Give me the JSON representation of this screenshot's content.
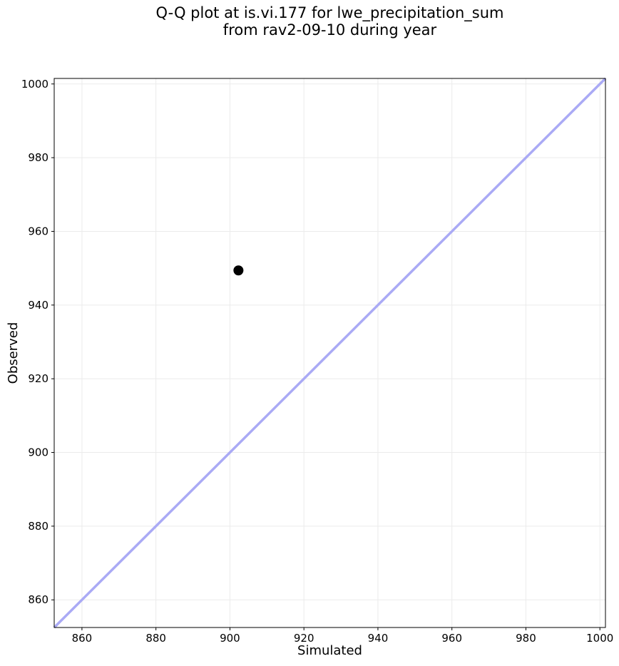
{
  "figure": {
    "title_lines": [
      "Q-Q plot at is.vi.177 for lwe_precipitation_sum",
      "from rav2-09-10 during year"
    ]
  },
  "chart_data": {
    "type": "scatter",
    "title": "Q-Q plot at is.vi.177 for lwe_precipitation_sum from rav2-09-10 during year",
    "xlabel": "Simulated",
    "ylabel": "Observed",
    "xlim": [
      852.5,
      1001.5
    ],
    "ylim": [
      852.5,
      1001.5
    ],
    "xticks": [
      860,
      880,
      900,
      920,
      940,
      960,
      980,
      1000
    ],
    "yticks": [
      860,
      880,
      900,
      920,
      940,
      960,
      980,
      1000
    ],
    "grid": true,
    "legend_position": "none",
    "series": [
      {
        "name": "identity_line",
        "type": "line",
        "color": "#aaaaf5",
        "width": 3.5,
        "x": [
          852.5,
          1001.5
        ],
        "y": [
          852.5,
          1001.5
        ]
      },
      {
        "name": "quantile_points",
        "type": "scatter",
        "marker": "circle",
        "marker_radius": 7,
        "color": "#000000",
        "points": [
          {
            "x": 902.3,
            "y": 949.4
          }
        ]
      }
    ],
    "colors": {
      "background": "#ffffff",
      "grid": "#ebebeb",
      "spine": "#000000",
      "tick_label": "#000000"
    }
  }
}
